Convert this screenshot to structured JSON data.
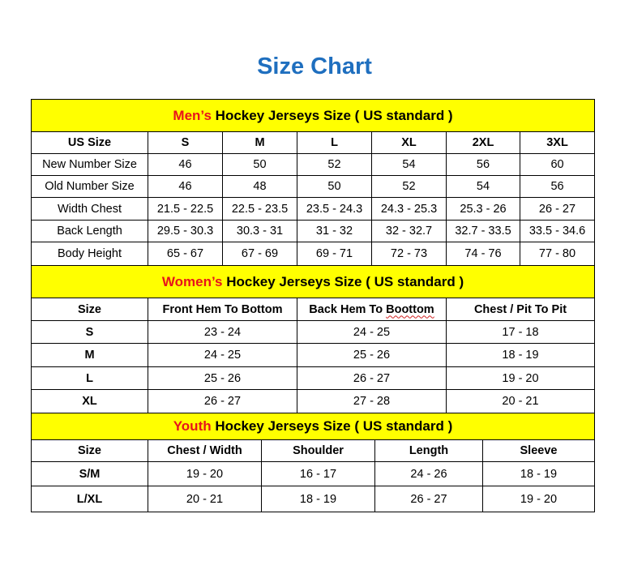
{
  "title": "Size Chart",
  "colors": {
    "title": "#1f6fbf",
    "band": "#ffff00",
    "accent": "#e8141b"
  },
  "men": {
    "accent": "Men’s",
    "heading": " Hockey Jerseys Size ( US standard )",
    "header": [
      "US Size",
      "S",
      "M",
      "L",
      "XL",
      "2XL",
      "3XL"
    ],
    "rows": [
      [
        "New Number Size",
        "46",
        "50",
        "52",
        "54",
        "56",
        "60"
      ],
      [
        "Old Number Size",
        "46",
        "48",
        "50",
        "52",
        "54",
        "56"
      ],
      [
        "Width Chest",
        "21.5 - 22.5",
        "22.5 - 23.5",
        "23.5 - 24.3",
        "24.3 - 25.3",
        "25.3 - 26",
        "26 - 27"
      ],
      [
        "Back Length",
        "29.5 - 30.3",
        "30.3 - 31",
        "31 - 32",
        "32 - 32.7",
        "32.7 - 33.5",
        "33.5 - 34.6"
      ],
      [
        "Body Height",
        "65 - 67",
        "67 - 69",
        "69 - 71",
        "72 - 73",
        "74 - 76",
        "77 - 80"
      ]
    ]
  },
  "women": {
    "accent": "Women’s",
    "heading": " Hockey Jerseys Size ( US standard )",
    "header": [
      "Size",
      "Front Hem To Bottom",
      "Back Hem To Boottom",
      "Chest / Pit To Pit"
    ],
    "rows": [
      [
        "S",
        "23 - 24",
        "24 - 25",
        "17 - 18"
      ],
      [
        "M",
        "24 - 25",
        "25 - 26",
        "18 - 19"
      ],
      [
        "L",
        "25 - 26",
        "26 - 27",
        "19 - 20"
      ],
      [
        "XL",
        "26 - 27",
        "27 - 28",
        "20 - 21"
      ]
    ]
  },
  "youth": {
    "accent": "Youth",
    "heading": " Hockey Jerseys Size ( US standard )",
    "header": [
      "Size",
      "Chest / Width",
      "Shoulder",
      "Length",
      "Sleeve"
    ],
    "rows": [
      [
        "S/M",
        "19 - 20",
        "16 - 17",
        "24 - 26",
        "18 - 19"
      ],
      [
        "L/XL",
        "20 - 21",
        "18 - 19",
        "26 - 27",
        "19 - 20"
      ]
    ]
  }
}
